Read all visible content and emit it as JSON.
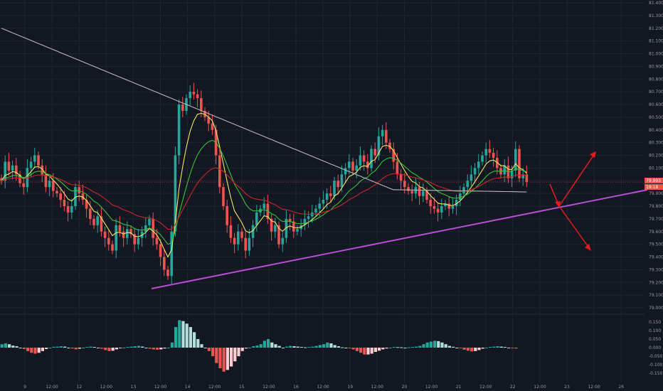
{
  "colors": {
    "background": "#131722",
    "grid": "#1f2431",
    "up": "#26a69a",
    "down": "#ef5350",
    "ema_fast": "#f5e663",
    "ema_mid": "#36c23a",
    "ema_slow": "#c62828",
    "ma_long": "#b8b8b8",
    "trendline": "#b84dd6",
    "arrow": "#e01e1e",
    "hist_pos_strong": "#26a69a",
    "hist_pos_weak": "#b2dfdb",
    "hist_neg_strong": "#ef5350",
    "hist_neg_weak": "#ffcdd2",
    "axis_text": "#9598a1"
  },
  "price_axis": {
    "ticks": [
      "81.400",
      "81.300",
      "81.200",
      "81.100",
      "81.000",
      "80.900",
      "80.800",
      "80.700",
      "80.600",
      "80.500",
      "80.400",
      "80.300",
      "80.200",
      "80.100",
      "80.000",
      "79.900",
      "79.800",
      "79.700",
      "79.600",
      "79.500",
      "79.400",
      "79.300",
      "79.200",
      "79.100",
      "79.000"
    ]
  },
  "osc_axis": {
    "ticks": [
      "0.150",
      "0.100",
      "0.050",
      "0.000",
      "-0.050",
      "-0.100",
      "-0.150"
    ]
  },
  "time_axis": {
    "labels": [
      "9",
      "12:00",
      "12",
      "12:00",
      "13",
      "12:00",
      "14",
      "12:00",
      "15",
      "12:00",
      "16",
      "12:00",
      "19",
      "12:00",
      "20",
      "12:00",
      "21",
      "12:00",
      "22",
      "12:00",
      "23",
      "12:00",
      "26"
    ]
  },
  "badges": {
    "last_price": "79.993",
    "countdown": "19:18"
  },
  "chart_data": [
    {
      "type": "line",
      "ylim": [
        79.0,
        81.4
      ],
      "x_unit": "bar index (15 bars per day, 12 bars between axis labels)",
      "series": [
        {
          "style": "candlestick",
          "close": [
            80.0,
            80.15,
            80.08,
            80.12,
            80.05,
            79.98,
            79.95,
            80.1,
            80.15,
            80.2,
            80.12,
            80.05,
            79.95,
            80.0,
            79.92,
            79.9,
            79.85,
            79.8,
            79.75,
            79.8,
            79.95,
            79.9,
            79.85,
            79.78,
            79.7,
            79.65,
            79.72,
            79.6,
            79.55,
            79.5,
            79.45,
            79.65,
            79.6,
            79.55,
            79.62,
            79.58,
            79.5,
            79.55,
            79.6,
            79.65,
            79.7,
            79.55,
            79.5,
            79.4,
            79.3,
            79.25,
            79.6,
            80.2,
            80.6,
            80.55,
            80.65,
            80.7,
            80.68,
            80.65,
            80.55,
            80.5,
            80.45,
            80.4,
            80.2,
            79.95,
            79.8,
            79.65,
            79.55,
            79.5,
            79.6,
            79.55,
            79.45,
            79.55,
            79.65,
            79.75,
            79.78,
            79.82,
            79.7,
            79.6,
            79.65,
            79.5,
            79.55,
            79.7,
            79.68,
            79.6,
            79.62,
            79.65,
            79.7,
            79.72,
            79.75,
            79.78,
            79.82,
            79.85,
            79.9,
            79.88,
            80.0,
            79.95,
            80.05,
            80.1,
            80.15,
            80.08,
            80.12,
            80.2,
            80.15,
            80.1,
            80.25,
            80.2,
            80.35,
            80.4,
            80.3,
            80.25,
            80.15,
            80.05,
            80.0,
            79.95,
            79.92,
            79.9,
            79.95,
            79.88,
            79.92,
            79.85,
            79.8,
            79.78,
            79.75,
            79.8,
            79.82,
            79.78,
            79.8,
            79.85,
            79.9,
            79.95,
            80.0,
            80.05,
            80.1,
            80.15,
            80.2,
            80.25,
            80.22,
            80.18,
            80.1,
            80.05,
            80.12,
            80.02,
            80.08,
            80.25,
            80.02,
            80.05,
            79.99
          ]
        },
        {
          "style": "line",
          "role": "ema_fast"
        },
        {
          "style": "line",
          "role": "ema_mid"
        },
        {
          "style": "line",
          "role": "ema_slow"
        },
        {
          "style": "line",
          "role": "ma_long"
        }
      ]
    },
    {
      "type": "bar",
      "ylim": [
        -0.17,
        0.17
      ],
      "x_unit": "bar index (15 bars per day, 12 bars between axis labels)",
      "series": [
        {
          "values": [
            0.02,
            0.025,
            0.02,
            0.012,
            0.008,
            0.0,
            -0.008,
            -0.02,
            -0.03,
            -0.035,
            -0.03,
            -0.02,
            -0.008,
            0.0,
            0.005,
            0.006,
            0.008,
            0.006,
            0.0,
            -0.005,
            -0.01,
            -0.006,
            0.0,
            0.004,
            0.006,
            0.004,
            0.0,
            -0.006,
            -0.014,
            -0.02,
            -0.018,
            -0.01,
            -0.004,
            0.0,
            0.004,
            0.006,
            0.008,
            0.01,
            0.006,
            0.0,
            -0.006,
            -0.01,
            -0.012,
            -0.01,
            -0.005,
            0.0,
            0.03,
            0.12,
            0.16,
            0.155,
            0.14,
            0.12,
            0.09,
            0.05,
            0.02,
            0.0,
            -0.02,
            -0.05,
            -0.09,
            -0.12,
            -0.14,
            -0.13,
            -0.11,
            -0.08,
            -0.05,
            -0.02,
            -0.005,
            0.0,
            0.008,
            0.012,
            0.02,
            0.04,
            0.05,
            0.03,
            0.02,
            0.01,
            0.0,
            0.006,
            0.01,
            0.008,
            0.006,
            0.004,
            0.002,
            0.004,
            0.006,
            0.01,
            0.015,
            0.02,
            0.03,
            0.025,
            0.015,
            0.008,
            0.002,
            0.0,
            -0.004,
            -0.01,
            -0.02,
            -0.03,
            -0.04,
            -0.04,
            -0.035,
            -0.025,
            -0.018,
            -0.01,
            -0.005,
            0.0,
            0.004,
            0.003,
            0.002,
            0.0,
            0.002,
            0.004,
            0.006,
            0.01,
            0.02,
            0.03,
            0.035,
            0.04,
            0.038,
            0.03,
            0.02,
            0.01,
            0.005,
            0.0,
            -0.004,
            -0.012,
            -0.018,
            -0.022,
            -0.02,
            -0.014,
            -0.006,
            0.0,
            0.004,
            0.006,
            0.008,
            0.006,
            0.004,
            0.0,
            -0.002,
            -0.005
          ]
        }
      ]
    }
  ]
}
